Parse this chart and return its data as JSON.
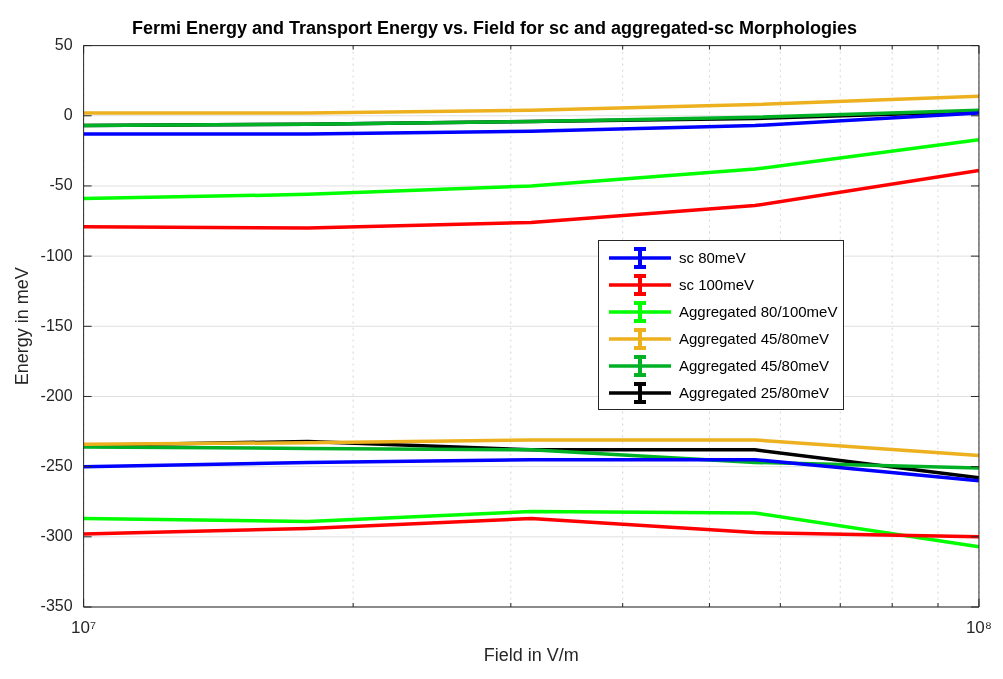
{
  "chart_data": {
    "type": "line",
    "title": "Fermi Energy and Transport Energy vs. Field for sc and aggregated-sc Morphologies",
    "xlabel": "Field in V/m",
    "ylabel": "Energy in meV",
    "log": "x",
    "xlim": [
      10000000,
      100000000
    ],
    "xticks": [
      {
        "value": 10000000,
        "label": "10⁷"
      },
      {
        "value": 20000000,
        "label": null
      },
      {
        "value": 30000000,
        "label": null
      },
      {
        "value": 40000000,
        "label": null
      },
      {
        "value": 50000000,
        "label": null
      },
      {
        "value": 60000000,
        "label": null
      },
      {
        "value": 70000000,
        "label": null
      },
      {
        "value": 80000000,
        "label": null
      },
      {
        "value": 90000000,
        "label": null
      },
      {
        "value": 100000000,
        "label": "10⁸"
      }
    ],
    "ylim": [
      -350,
      50
    ],
    "yticks": [
      -350,
      -300,
      -250,
      -200,
      -150,
      -100,
      -50,
      0,
      50
    ],
    "grid": true,
    "legend": "right",
    "marker": "none",
    "line_style": "solid",
    "x": [
      10000000,
      17800000,
      31600000,
      56200000,
      100000000,
      10000000,
      17800000,
      31600000,
      56200000,
      100000000
    ],
    "series": [
      {
        "name": "sc 80meV",
        "color": "#0000ff",
        "values": [
          -13,
          -13,
          -11,
          -7,
          2,
          -250,
          -247,
          -245,
          -245,
          -260
        ]
      },
      {
        "name": "sc 100meV",
        "color": "#ff0000",
        "values": [
          -79,
          -80,
          -76,
          -64,
          -39,
          -298,
          -294,
          -287,
          -297,
          -300
        ]
      },
      {
        "name": "Aggregated 80/100meV",
        "color": "#00ff00",
        "values": [
          -59,
          -56,
          -50,
          -38,
          -17,
          -287,
          -289,
          -282,
          -283,
          -307
        ]
      },
      {
        "name": "Aggregated 45/80meV",
        "color": "#edb120",
        "values": [
          2,
          2,
          4,
          8,
          14,
          -234,
          -233,
          -231,
          -231,
          -242
        ]
      },
      {
        "name": "Aggregated 45/80meV",
        "color": "#00b025",
        "values": [
          -7,
          -6,
          -4,
          -1,
          4,
          -236,
          -237,
          -238,
          -247,
          -251
        ]
      },
      {
        "name": "Aggregated 25/80meV",
        "color": "#000000",
        "values": [
          -7,
          -6,
          -4,
          -2,
          3,
          -235,
          -232,
          -238,
          -238,
          -258
        ]
      }
    ]
  }
}
